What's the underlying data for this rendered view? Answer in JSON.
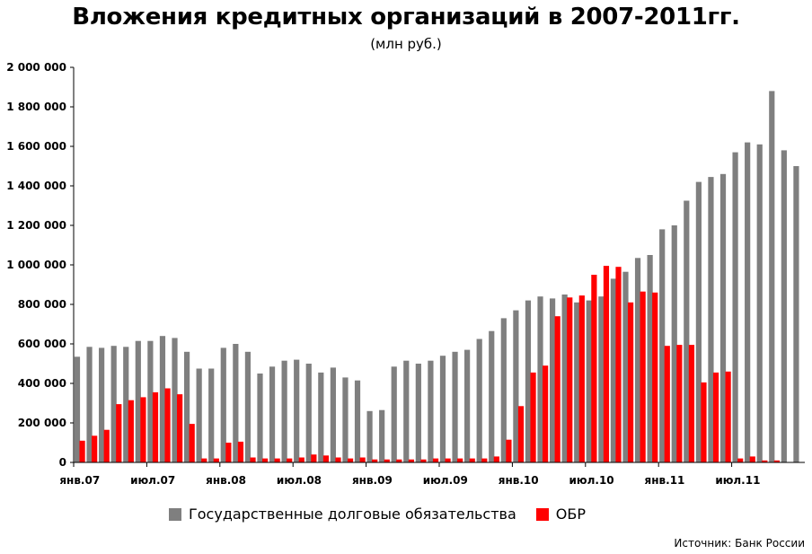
{
  "chart_data": {
    "type": "bar",
    "title": "Вложения кредитных организаций в 2007-2011гг.",
    "subtitle": "(млн руб.)",
    "source": "Источник: Банк России",
    "ylim": [
      0,
      2000000
    ],
    "yticks": [
      0,
      200000,
      400000,
      600000,
      800000,
      1000000,
      1200000,
      1400000,
      1600000,
      1800000,
      2000000
    ],
    "ytick_labels": [
      "0",
      "200 000",
      "400 000",
      "600 000",
      "800 000",
      "1 000 000",
      "1 200 000",
      "1 400 000",
      "1 600 000",
      "1 800 000",
      "2 000 000"
    ],
    "x_ticks": [
      {
        "index": 0,
        "label": "янв.07"
      },
      {
        "index": 6,
        "label": "июл.07"
      },
      {
        "index": 12,
        "label": "янв.08"
      },
      {
        "index": 18,
        "label": "июл.08"
      },
      {
        "index": 24,
        "label": "янв.09"
      },
      {
        "index": 30,
        "label": "июл.09"
      },
      {
        "index": 36,
        "label": "янв.10"
      },
      {
        "index": 42,
        "label": "июл.10"
      },
      {
        "index": 48,
        "label": "янв.11"
      },
      {
        "index": 54,
        "label": "июл.11"
      }
    ],
    "series": [
      {
        "name": "Государственные долговые обязательства",
        "color": "#7f7f7f",
        "values": [
          535000,
          585000,
          580000,
          590000,
          585000,
          615000,
          615000,
          640000,
          630000,
          560000,
          475000,
          475000,
          580000,
          600000,
          560000,
          450000,
          485000,
          515000,
          520000,
          500000,
          455000,
          480000,
          430000,
          415000,
          260000,
          265000,
          485000,
          515000,
          500000,
          515000,
          540000,
          560000,
          570000,
          625000,
          665000,
          730000,
          770000,
          820000,
          840000,
          830000,
          850000,
          810000,
          820000,
          840000,
          930000,
          965000,
          1035000,
          1050000,
          1180000,
          1200000,
          1325000,
          1420000,
          1445000,
          1460000,
          1570000,
          1620000,
          1610000,
          1880000,
          1580000,
          1500000
        ]
      },
      {
        "name": "ОБР",
        "color": "#ff0000",
        "values": [
          110000,
          135000,
          165000,
          295000,
          315000,
          330000,
          355000,
          375000,
          345000,
          195000,
          20000,
          20000,
          100000,
          105000,
          25000,
          20000,
          20000,
          20000,
          25000,
          40000,
          35000,
          25000,
          20000,
          25000,
          15000,
          15000,
          15000,
          15000,
          15000,
          20000,
          20000,
          20000,
          20000,
          20000,
          30000,
          115000,
          285000,
          455000,
          490000,
          740000,
          835000,
          845000,
          950000,
          995000,
          990000,
          810000,
          865000,
          860000,
          590000,
          595000,
          595000,
          405000,
          455000,
          460000,
          20000,
          30000,
          10000,
          10000,
          0,
          0
        ]
      }
    ]
  }
}
